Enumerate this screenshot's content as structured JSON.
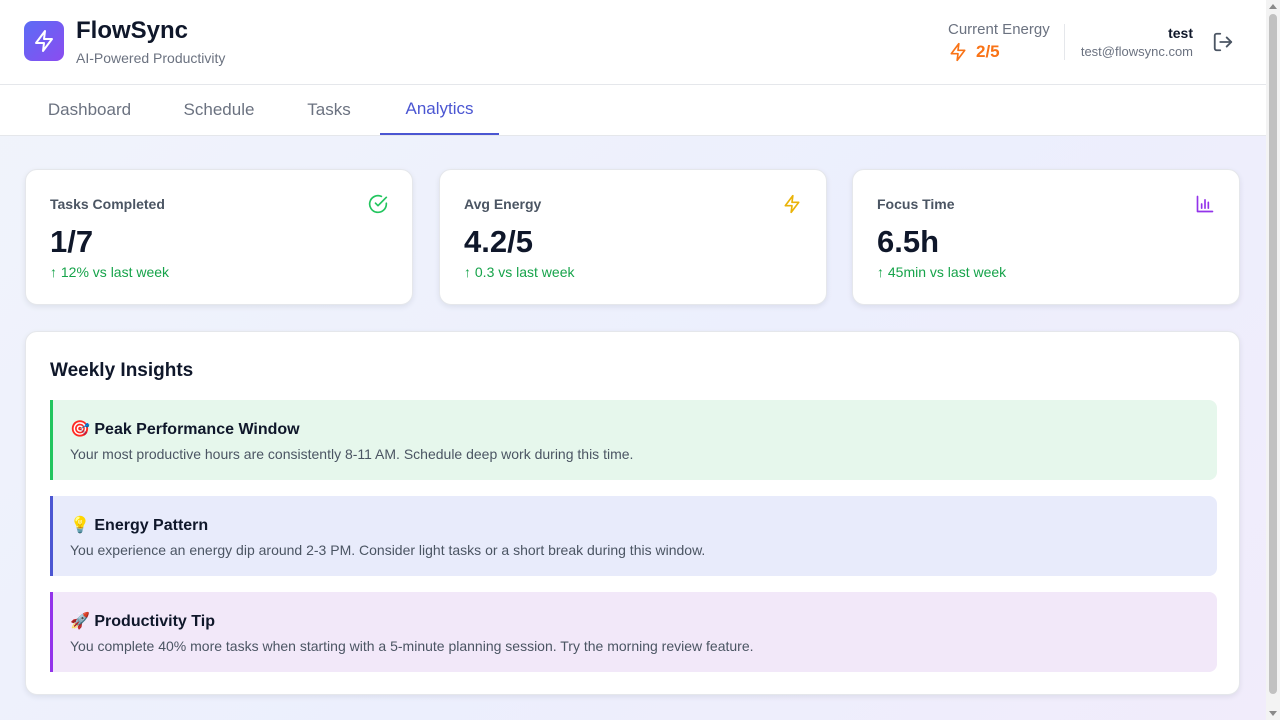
{
  "header": {
    "app_name": "FlowSync",
    "tagline": "AI-Powered Productivity",
    "logo_icon": "bolt-icon",
    "energy_label": "Current Energy",
    "energy_value": "2/5",
    "user_name": "test",
    "user_email": "test@flowsync.com",
    "logout_icon": "logout-icon"
  },
  "tabs": [
    {
      "label": "Dashboard",
      "active": false
    },
    {
      "label": "Schedule",
      "active": false
    },
    {
      "label": "Tasks",
      "active": false
    },
    {
      "label": "Analytics",
      "active": true
    }
  ],
  "stats": [
    {
      "label": "Tasks Completed",
      "value": "1/7",
      "change": "↑ 12% vs last week",
      "icon": "check-circle-icon",
      "icon_color": "#22c55e"
    },
    {
      "label": "Avg Energy",
      "value": "4.2/5",
      "change": "↑ 0.3 vs last week",
      "icon": "bolt-icon",
      "icon_color": "#eab308"
    },
    {
      "label": "Focus Time",
      "value": "6.5h",
      "change": "↑ 45min vs last week",
      "icon": "bar-chart-icon",
      "icon_color": "#9333ea"
    }
  ],
  "insights": {
    "title": "Weekly Insights",
    "items": [
      {
        "title": "🎯 Peak Performance Window",
        "text": "Your most productive hours are consistently 8-11 AM. Schedule deep work during this time.",
        "bg_color": "#e6f7ec",
        "accent_color": "#22c55e"
      },
      {
        "title": "💡 Energy Pattern",
        "text": "You experience an energy dip around 2-3 PM. Consider light tasks or a short break during this window.",
        "bg_color": "#e8ebfb",
        "accent_color": "#4b56d2"
      },
      {
        "title": "🚀 Productivity Tip",
        "text": "You complete 40% more tasks when starting with a 5-minute planning session. Try the morning review feature.",
        "bg_color": "#f2e8f9",
        "accent_color": "#9333ea"
      }
    ]
  },
  "colors": {
    "accent": "#4b56d2",
    "energy": "#f97316",
    "positive": "#16a34a"
  }
}
